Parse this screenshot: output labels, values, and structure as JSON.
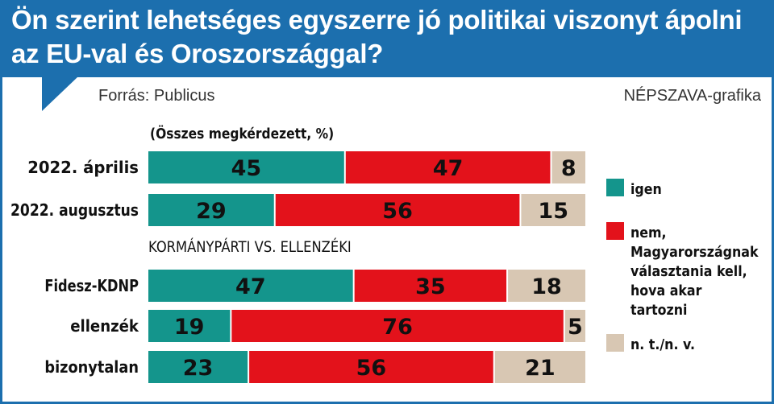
{
  "chart_data": {
    "type": "bar",
    "stacked": true,
    "orientation": "horizontal",
    "title": "Ön szerint lehetséges egyszerre jó politikai viszonyt ápolni az EU-val és Oroszországgal?",
    "source": "Forrás: Publicus",
    "credit": "NÉPSZAVA-grafika",
    "subtitle": "(Összes megkérdezett, %)",
    "group_label": "KORMÁNYPÁRTI VS. ELLENZÉKI",
    "categories": [
      "2022. április",
      "2022. augusztus",
      "Fidesz-KDNP",
      "ellenzék",
      "bizonytalan"
    ],
    "series": [
      {
        "name": "igen",
        "color": "#14958c",
        "values": [
          45,
          29,
          47,
          19,
          23
        ]
      },
      {
        "name": "nem, Magyarországnak választania kell, hova akar tartozni",
        "color": "#e3121b",
        "values": [
          47,
          56,
          35,
          76,
          56
        ]
      },
      {
        "name": "n. t./n. v.",
        "color": "#d8c7b3",
        "values": [
          8,
          15,
          18,
          5,
          21
        ]
      }
    ],
    "xlim": [
      0,
      100
    ],
    "legend_position": "right"
  },
  "legend": [
    {
      "label": "igen",
      "color": "#14958c"
    },
    {
      "label": "nem, Magyarországnak választania kell, hova akar tartozni",
      "color": "#e3121b"
    },
    {
      "label": "n. t./n. v.",
      "color": "#d8c7b3"
    }
  ],
  "colors": {
    "header": "#1c6fae",
    "text": "#111111"
  }
}
